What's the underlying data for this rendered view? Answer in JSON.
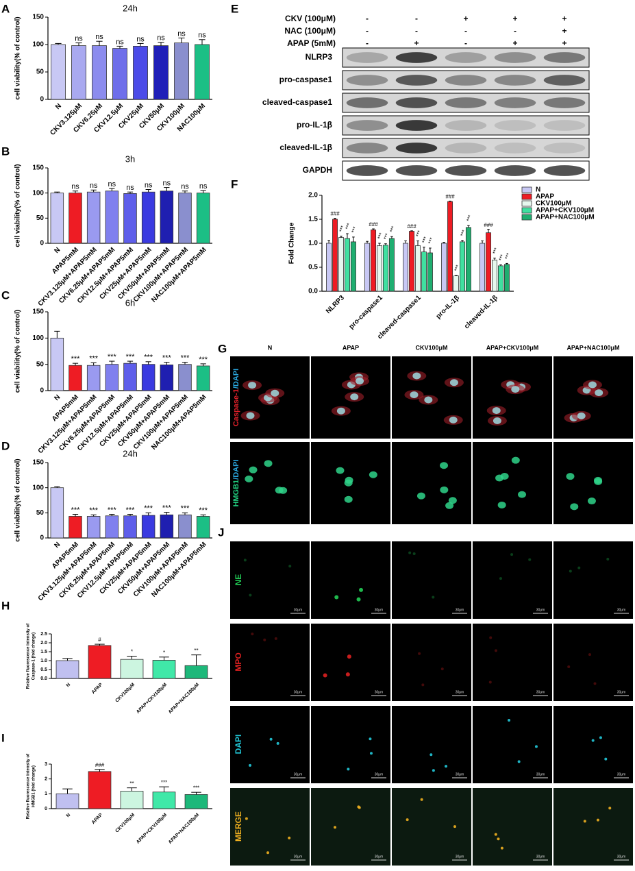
{
  "chart_data": [
    {
      "type": "bar",
      "label": "A",
      "title": "24h",
      "ylabel": [
        "cell viability(% of control)"
      ],
      "categories": [
        "N",
        "CKV3.125μM",
        "CKV6.25μM",
        "CKV12.5μM",
        "CKV25μM",
        "CKV50μM",
        "CKV100μM",
        "NAC100μM"
      ],
      "values": [
        100,
        98,
        98,
        93,
        97,
        98,
        103,
        100
      ],
      "errors": [
        2,
        5,
        8,
        4,
        5,
        6,
        9,
        9
      ],
      "annotations": [
        null,
        "ns",
        "ns",
        "ns",
        "ns",
        "ns",
        "ns",
        "ns"
      ],
      "colors": [
        "#c8c8f4",
        "#a9a9f0",
        "#8c8cee",
        "#6e6eea",
        "#4b4be8",
        "#1f1fb8",
        "#8a8fce",
        "#1cbf85"
      ],
      "ylim": [
        0,
        150
      ],
      "yticks": [
        0,
        50,
        100,
        150
      ]
    },
    {
      "type": "bar",
      "label": "B",
      "title": "3h",
      "ylabel": [
        "cell viability(% of control)"
      ],
      "categories": [
        "N",
        "APAP5mM",
        "CKV3.125μM+APAP5mM",
        "CKV6.25μM+APAP5mM",
        "CKV12.5μM+APAP5mM",
        "CKV25μM+APAP5mM",
        "CKV50μM+APAP5mM",
        "CKV100μM+APAP5mM",
        "NAC100μM+APAP5mM"
      ],
      "values": [
        100,
        100,
        102,
        104,
        99,
        102,
        104,
        100,
        100
      ],
      "errors": [
        2,
        4,
        4,
        5,
        3,
        5,
        7,
        4,
        5
      ],
      "annotations": [
        null,
        "ns",
        "ns",
        "ns",
        "ns",
        "ns",
        "ns",
        "ns",
        "ns"
      ],
      "colors": [
        "#c8c8f4",
        "#ee1c24",
        "#9a9af0",
        "#8080ee",
        "#5e5eea",
        "#3a3ae0",
        "#1f1fb0",
        "#8a8fce",
        "#1cbf85"
      ],
      "ylim": [
        0,
        150
      ],
      "yticks": [
        0,
        50,
        100,
        150
      ]
    },
    {
      "type": "bar",
      "label": "C",
      "title": "6h",
      "ylabel": [
        "cell viability(% of control)"
      ],
      "categories": [
        "N",
        "APAP5mM",
        "CKV3.125μM+APAP5mM",
        "CKV6.25μM+APAP5mM",
        "CKV12.5μM+APAP5mM",
        "CKV25μM+APAP5mM",
        "CKV50μM+APAP5mM",
        "CKV100μM+APAP5mM",
        "NAC100μM+APAP5mM"
      ],
      "values": [
        100,
        48,
        48,
        50,
        52,
        50,
        49,
        50,
        47
      ],
      "errors": [
        13,
        4,
        5,
        6,
        4,
        5,
        5,
        4,
        4
      ],
      "annotations": [
        null,
        "***",
        "***",
        "***",
        "***",
        "***",
        "***",
        "***",
        "***"
      ],
      "colors": [
        "#c8c8f4",
        "#ee1c24",
        "#9a9af0",
        "#8080ee",
        "#5e5eea",
        "#3a3ae0",
        "#1f1fb0",
        "#8a8fce",
        "#1cbf85"
      ],
      "ylim": [
        0,
        150
      ],
      "yticks": [
        0,
        50,
        100,
        150
      ]
    },
    {
      "type": "bar",
      "label": "D",
      "title": "24h",
      "ylabel": [
        "cell viability(% of control)"
      ],
      "categories": [
        "N",
        "APAP5mM",
        "CKV3.125μM+APAP5mM",
        "CKV6.25μM+APAP5mM",
        "CKV12.5μM+APAP5mM",
        "CKV25μM+APAP5mM",
        "CKV50μM+APAP5mM",
        "CKV100μM+APAP5mM",
        "NAC100μM+APAP5mM"
      ],
      "values": [
        100,
        43,
        43,
        44,
        44,
        45,
        46,
        46,
        43
      ],
      "errors": [
        2,
        4,
        3,
        3,
        3,
        5,
        5,
        4,
        3
      ],
      "annotations": [
        null,
        "***",
        "***",
        "***",
        "***",
        "***",
        "***",
        "***",
        "***"
      ],
      "colors": [
        "#c8c8f4",
        "#ee1c24",
        "#9a9af0",
        "#8080ee",
        "#5e5eea",
        "#3a3ae0",
        "#1f1fb0",
        "#8a8fce",
        "#1cbf85"
      ],
      "ylim": [
        0,
        150
      ],
      "yticks": [
        0,
        50,
        100,
        150
      ]
    },
    {
      "type": "grouped-bar",
      "label": "F",
      "ylabel": [
        "Fold Change"
      ],
      "categories": [
        "NLRP3",
        "pro-caspase1",
        "cleaved-caspase1",
        "pro-IL-1β",
        "cleaved-IL-1β"
      ],
      "series": [
        {
          "name": "N",
          "color": "#c8c8f4",
          "values": [
            1,
            1,
            1,
            1,
            1
          ],
          "errors": [
            0.06,
            0.04,
            0.05,
            0.02,
            0.05
          ],
          "annotations": [
            null,
            null,
            null,
            null,
            null
          ]
        },
        {
          "name": "APAP",
          "color": "#ee1c24",
          "values": [
            1.5,
            1.28,
            1.25,
            1.87,
            1.22
          ],
          "errors": [
            0.02,
            0.02,
            0.01,
            0.01,
            0.07
          ],
          "annotations": [
            "###",
            "###",
            "###",
            "###",
            "###"
          ]
        },
        {
          "name": "CKV100μM",
          "color": "#e6f7ee",
          "values": [
            1.12,
            0.95,
            0.95,
            0.32,
            0.65
          ],
          "errors": [
            0.03,
            0.05,
            0.1,
            0.01,
            0.04
          ],
          "annotations": [
            "***",
            "***",
            "***",
            "***",
            "***"
          ]
        },
        {
          "name": "APAP+CKV100μM",
          "color": "#40e0a0",
          "values": [
            1.1,
            0.96,
            0.82,
            1.03,
            0.53
          ],
          "errors": [
            0.1,
            0.03,
            0.1,
            0.03,
            0.02
          ],
          "annotations": [
            "***",
            "***",
            "***",
            "***",
            "***"
          ]
        },
        {
          "name": "APAP+NAC100μM",
          "color": "#1fae70",
          "values": [
            1.03,
            1.1,
            0.8,
            1.33,
            0.56
          ],
          "errors": [
            0.1,
            0.04,
            0.1,
            0.04,
            0.02
          ],
          "annotations": [
            "***",
            "***",
            "***",
            "***",
            "***"
          ]
        }
      ],
      "ylim": [
        0,
        2
      ],
      "yticks": [
        {
          "value": 0,
          "label": "0.0"
        },
        0.5,
        {
          "value": 1,
          "label": "1.0"
        },
        1.5,
        {
          "value": 2,
          "label": "2.0"
        }
      ],
      "legend": "right"
    },
    {
      "type": "bar",
      "label": "H",
      "ylabel": [
        "Relative fluorescence intensity of",
        "Caspase-1 (fold change)"
      ],
      "categories": [
        "N",
        "APAP",
        "CKV100μM",
        "APAP+CKV100μM",
        "APAP+NAC100μM"
      ],
      "values": [
        1,
        1.85,
        1.07,
        1.02,
        0.72
      ],
      "errors": [
        0.12,
        0.07,
        0.18,
        0.18,
        0.6
      ],
      "annotations": [
        null,
        "#",
        "*",
        "*",
        "**"
      ],
      "colors": [
        "#c0c0f0",
        "#ee1c24",
        "#ccf5e0",
        "#40e8a8",
        "#1db87a"
      ],
      "ylim": [
        0,
        2.5
      ],
      "yticks": [
        {
          "value": 0,
          "label": "0.0"
        },
        0.5,
        {
          "value": 1,
          "label": "1.0"
        },
        1.5,
        {
          "value": 2,
          "label": "2.0"
        },
        2.5
      ]
    },
    {
      "type": "bar",
      "label": "I",
      "ylabel": [
        "Relative fluorescence intensity of",
        "HMGB1 (fold change)"
      ],
      "categories": [
        "N",
        "APAP",
        "CKV100μM",
        "APAP+CKV100μM",
        "APAP+NAC100μM"
      ],
      "values": [
        1,
        2.5,
        1.18,
        1.12,
        0.95
      ],
      "errors": [
        0.33,
        0.14,
        0.22,
        0.35,
        0.15
      ],
      "annotations": [
        null,
        "###",
        "**",
        "***",
        "***"
      ],
      "colors": [
        "#c0c0f0",
        "#ee1c24",
        "#ccf5e0",
        "#40e8a8",
        "#1db87a"
      ],
      "ylim": [
        0,
        3
      ],
      "yticks": [
        0,
        1,
        2,
        3
      ]
    }
  ],
  "blot": {
    "label": "E",
    "conditions": [
      {
        "name": "CKV (100μM)",
        "signs": [
          "-",
          "-",
          "+",
          "+",
          "+"
        ]
      },
      {
        "name": "NAC (100μM)",
        "signs": [
          "-",
          "-",
          "-",
          "-",
          "+"
        ]
      },
      {
        "name": "APAP  (5mM)",
        "signs": [
          "-",
          "+",
          "-",
          "+",
          "+"
        ]
      }
    ],
    "bands": [
      "NLRP3",
      "pro-caspase1",
      "cleaved-caspase1",
      "pro-IL-1β",
      "cleaved-IL-1β",
      "GAPDH"
    ]
  },
  "immunofluorescence": {
    "label": "G",
    "columns": [
      "N",
      "APAP",
      "CKV100μM",
      "APAP+CKV100μM",
      "APAP+NAC100μM"
    ],
    "rows": [
      [
        "Caspase-1",
        "/DAPI"
      ],
      [
        "HMGB1",
        "/DAPI"
      ]
    ]
  },
  "neutrophil_staining": {
    "label": "J",
    "rows": [
      "NE",
      "MPO",
      "DAPI",
      "MERGE"
    ],
    "scale_bar": "30μm"
  }
}
